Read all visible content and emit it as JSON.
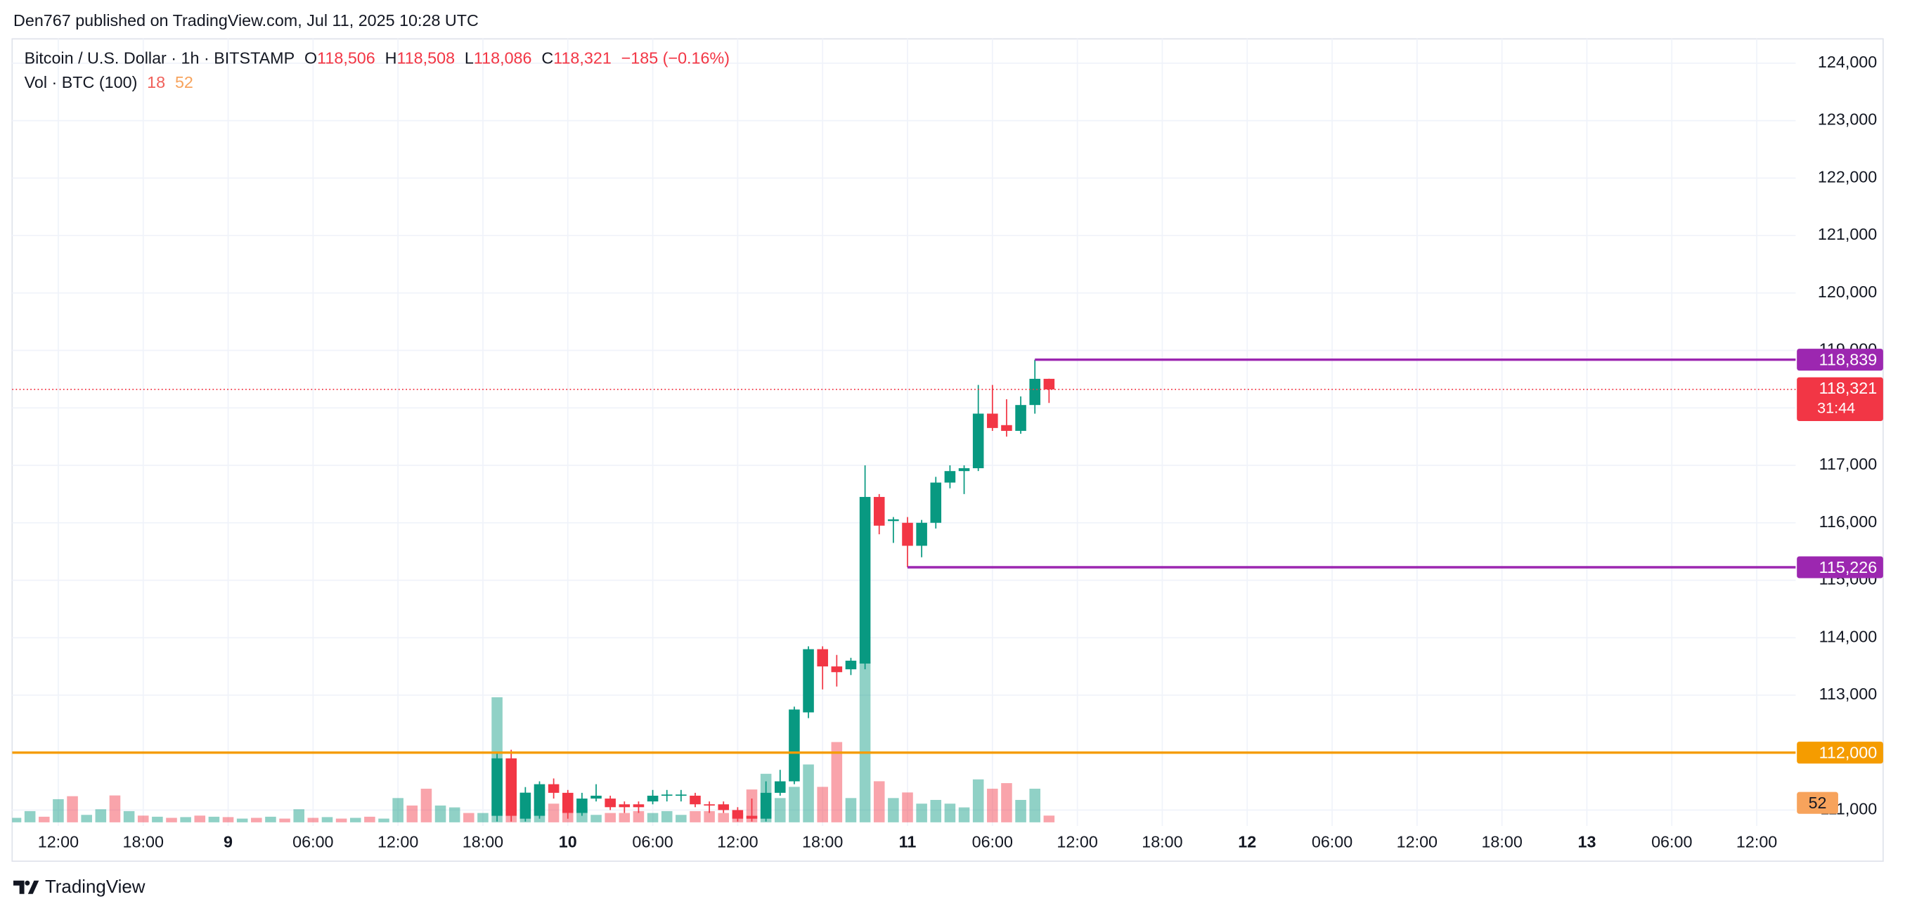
{
  "header": {
    "publisher": "Den767 published on TradingView.com, Jul 11, 2025 10:28 UTC"
  },
  "chart_data": {
    "type": "candlestick",
    "title": "Bitcoin / U.S. Dollar · 1h · BITSTAMP",
    "legend": [
      {
        "key": "O",
        "value": "118,506"
      },
      {
        "key": "H",
        "value": "118,508"
      },
      {
        "key": "L",
        "value": "118,086"
      },
      {
        "key": "C",
        "value": "118,321"
      }
    ],
    "change": "−185 (−0.16%)",
    "volume_title": "Vol · BTC (100)",
    "volume_ma": 52,
    "x": [
      0,
      1,
      2,
      3,
      4,
      5,
      6,
      7,
      8,
      9,
      10,
      11,
      12,
      13,
      14,
      15,
      16,
      17,
      18,
      19,
      20,
      21,
      22,
      23,
      24,
      25,
      26,
      27,
      28,
      29,
      30,
      31,
      32,
      33,
      34,
      35,
      36,
      37,
      38,
      39,
      40,
      41,
      42,
      43,
      44,
      45,
      46,
      47,
      48,
      49,
      50,
      51,
      52,
      53,
      54,
      55,
      56,
      57,
      58,
      59,
      60,
      61,
      62,
      63,
      64,
      65,
      66,
      67,
      68,
      69,
      70,
      71,
      72,
      73
    ],
    "open": [
      null,
      null,
      null,
      null,
      null,
      null,
      null,
      null,
      null,
      null,
      null,
      null,
      null,
      null,
      null,
      null,
      null,
      null,
      null,
      null,
      null,
      null,
      null,
      null,
      null,
      null,
      null,
      null,
      null,
      null,
      null,
      null,
      null,
      null,
      110900,
      111900,
      110850,
      110900,
      111450,
      111300,
      110950,
      111200,
      111200,
      111100,
      111100,
      111150,
      111250,
      111250,
      111250,
      111100,
      111100,
      111000,
      110900,
      110850,
      111300,
      111500,
      112700,
      113800,
      113500,
      113450,
      113550,
      116450,
      116030,
      116000,
      115600,
      116000,
      116700,
      116900,
      116950,
      117900,
      117700,
      117600,
      118050,
      118506
    ],
    "high": [
      null,
      null,
      null,
      null,
      null,
      null,
      null,
      null,
      null,
      null,
      null,
      null,
      null,
      null,
      null,
      null,
      null,
      null,
      null,
      null,
      null,
      null,
      null,
      null,
      null,
      null,
      null,
      null,
      null,
      null,
      null,
      null,
      null,
      null,
      112000,
      112050,
      111400,
      111500,
      111550,
      111350,
      111300,
      111450,
      111250,
      111150,
      111150,
      111350,
      111350,
      111350,
      111300,
      111150,
      111150,
      111050,
      111200,
      111500,
      111700,
      112800,
      113850,
      113850,
      113700,
      113650,
      117000,
      116500,
      116100,
      116100,
      116050,
      116800,
      117000,
      117000,
      118400,
      118400,
      118150,
      118200,
      118839,
      118508
    ],
    "low": [
      null,
      null,
      null,
      null,
      null,
      null,
      null,
      null,
      null,
      null,
      null,
      null,
      null,
      null,
      null,
      null,
      null,
      null,
      null,
      null,
      null,
      null,
      null,
      null,
      null,
      null,
      null,
      null,
      null,
      null,
      null,
      null,
      null,
      null,
      110800,
      110800,
      110800,
      110850,
      111200,
      110850,
      110900,
      111150,
      111000,
      110950,
      110950,
      111100,
      111150,
      111150,
      111050,
      110950,
      110950,
      110800,
      110800,
      110800,
      111250,
      111450,
      112600,
      113100,
      113150,
      113350,
      113450,
      115800,
      115650,
      115226,
      115400,
      115900,
      116600,
      116500,
      116900,
      117600,
      117500,
      117550,
      117900,
      118086
    ],
    "close": [
      null,
      null,
      null,
      null,
      null,
      null,
      null,
      null,
      null,
      null,
      null,
      null,
      null,
      null,
      null,
      null,
      null,
      null,
      null,
      null,
      null,
      null,
      null,
      null,
      null,
      null,
      null,
      null,
      null,
      null,
      null,
      null,
      null,
      null,
      111900,
      110900,
      111300,
      111450,
      111300,
      110950,
      111200,
      111250,
      111050,
      111050,
      111050,
      111250,
      111270,
      111270,
      111100,
      111080,
      111000,
      110850,
      110850,
      111300,
      111500,
      112750,
      113800,
      113500,
      113400,
      113600,
      116450,
      115950,
      116060,
      115600,
      116000,
      116700,
      116900,
      116950,
      117900,
      117650,
      117600,
      118050,
      118506,
      118321
    ],
    "up_color": "#089981",
    "down_color": "#f23645",
    "volume": [
      12,
      30,
      15,
      62,
      70,
      20,
      35,
      72,
      30,
      18,
      15,
      12,
      14,
      18,
      15,
      14,
      10,
      12,
      15,
      10,
      35,
      12,
      14,
      10,
      12,
      15,
      10,
      65,
      45,
      90,
      45,
      40,
      25,
      25,
      335,
      170,
      80,
      95,
      50,
      35,
      40,
      20,
      25,
      25,
      30,
      25,
      30,
      20,
      30,
      30,
      25,
      25,
      88,
      130,
      65,
      95,
      155,
      95,
      215,
      65,
      430,
      110,
      65,
      80,
      50,
      60,
      50,
      40,
      115,
      90,
      105,
      60,
      90,
      18
    ],
    "volume_up": [
      true,
      true,
      false,
      true,
      false,
      true,
      true,
      false,
      true,
      false,
      true,
      false,
      true,
      false,
      true,
      false,
      true,
      false,
      true,
      false,
      true,
      false,
      true,
      false,
      true,
      false,
      true,
      true,
      false,
      false,
      true,
      true,
      false,
      true,
      true,
      false,
      true,
      true,
      false,
      false,
      true,
      true,
      false,
      false,
      false,
      true,
      true,
      true,
      false,
      false,
      false,
      false,
      false,
      true,
      true,
      true,
      true,
      false,
      false,
      true,
      true,
      false,
      true,
      false,
      true,
      true,
      true,
      true,
      true,
      false,
      false,
      true,
      true,
      false
    ],
    "volume_ma_color": "#f7a35c",
    "xlim": [
      -0.26,
      125.75
    ],
    "xticks": [
      {
        "value": 3,
        "label": "12:00"
      },
      {
        "value": 9,
        "label": "18:00"
      },
      {
        "value": 15,
        "label": "9"
      },
      {
        "value": 21,
        "label": "06:00"
      },
      {
        "value": 27,
        "label": "12:00"
      },
      {
        "value": 33,
        "label": "18:00"
      },
      {
        "value": 39,
        "label": "10"
      },
      {
        "value": 45,
        "label": "06:00"
      },
      {
        "value": 51,
        "label": "12:00"
      },
      {
        "value": 57,
        "label": "18:00"
      },
      {
        "value": 63,
        "label": "11"
      },
      {
        "value": 69,
        "label": "06:00"
      },
      {
        "value": 75,
        "label": "12:00"
      },
      {
        "value": 81,
        "label": "18:00"
      },
      {
        "value": 87,
        "label": "12"
      },
      {
        "value": 93,
        "label": "06:00"
      },
      {
        "value": 99,
        "label": "12:00"
      },
      {
        "value": 105,
        "label": "18:00"
      },
      {
        "value": 111,
        "label": "13"
      },
      {
        "value": 117,
        "label": "06:00"
      },
      {
        "value": 123,
        "label": "12:00"
      }
    ],
    "ylim": [
      110723,
      124423
    ],
    "yticks": [
      {
        "value": 111000,
        "label": "111,000"
      },
      {
        "value": 112000,
        "label": "112,000"
      },
      {
        "value": 113000,
        "label": "113,000"
      },
      {
        "value": 114000,
        "label": "114,000"
      },
      {
        "value": 115000,
        "label": "115,000"
      },
      {
        "value": 116000,
        "label": "116,000"
      },
      {
        "value": 117000,
        "label": "117,000"
      },
      {
        "value": 118000,
        "label": "118,000"
      },
      {
        "value": 119000,
        "label": "119,000"
      },
      {
        "value": 120000,
        "label": "120,000"
      },
      {
        "value": 121000,
        "label": "121,000"
      },
      {
        "value": 122000,
        "label": "122,000"
      },
      {
        "value": 123000,
        "label": "123,000"
      },
      {
        "value": 124000,
        "label": "124,000"
      }
    ],
    "volume_ylim": [
      0,
      1080
    ],
    "levels": [
      {
        "value": 112000,
        "label": "112,000",
        "color": "#f59c00"
      },
      {
        "value": 118839,
        "label": "118,839",
        "start": 72,
        "color": "#9c27b0"
      },
      {
        "value": 115226,
        "label": "115,226",
        "start": 63,
        "color": "#9c27b0"
      }
    ],
    "last_price": {
      "value": 118321,
      "label": "118,321",
      "countdown": "31:44",
      "color": "#f23645"
    },
    "grid": true
  },
  "footer": {
    "brand": "TradingView"
  }
}
